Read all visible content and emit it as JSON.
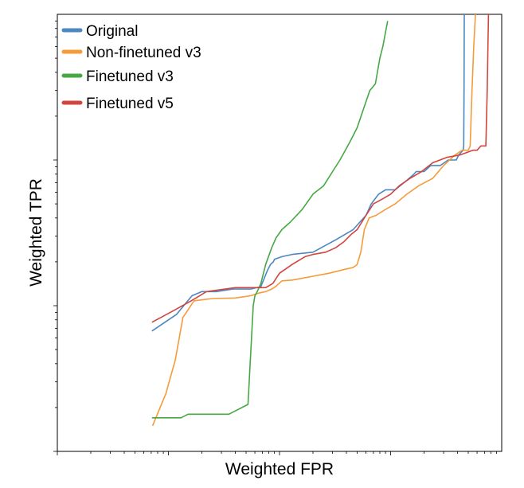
{
  "chart_data": {
    "type": "line",
    "title": "",
    "xlabel": "Weighted FPR",
    "ylabel": "Weighted TPR",
    "xscale": "log",
    "yscale": "log",
    "xlim": [
      0.0001,
      1
    ],
    "ylim": [
      0.001,
      1
    ],
    "grid": false,
    "legend": "top-left",
    "tick_labels_shown": false,
    "series": [
      {
        "name": "Original",
        "color": "#4b87c0",
        "x": [
          0.00071,
          0.00118,
          0.00163,
          0.002,
          0.0027,
          0.0038,
          0.0055,
          0.0068,
          0.0078,
          0.0083,
          0.0088,
          0.009,
          0.0105,
          0.013,
          0.02,
          0.032,
          0.046,
          0.06,
          0.067,
          0.078,
          0.09,
          0.11,
          0.135,
          0.16,
          0.17,
          0.2,
          0.23,
          0.28,
          0.33,
          0.36,
          0.39,
          0.41,
          0.45,
          0.455,
          0.458,
          0.46
        ],
        "y": [
          0.0067,
          0.0087,
          0.0117,
          0.0125,
          0.0125,
          0.013,
          0.013,
          0.0135,
          0.0175,
          0.0192,
          0.02,
          0.0208,
          0.0217,
          0.0225,
          0.0233,
          0.0283,
          0.0333,
          0.0417,
          0.05,
          0.0583,
          0.0625,
          0.0625,
          0.0708,
          0.0792,
          0.0833,
          0.0833,
          0.0917,
          0.0917,
          0.1,
          0.1,
          0.1,
          0.1083,
          0.1167,
          0.125,
          0.3,
          1.0
        ]
      },
      {
        "name": "Non-finetuned v3",
        "color": "#f59b3a",
        "x": [
          0.00072,
          0.00095,
          0.00105,
          0.00115,
          0.00135,
          0.0017,
          0.0025,
          0.004,
          0.0055,
          0.0065,
          0.0075,
          0.0085,
          0.0092,
          0.0105,
          0.013,
          0.019,
          0.028,
          0.039,
          0.046,
          0.05,
          0.054,
          0.058,
          0.064,
          0.074,
          0.09,
          0.11,
          0.14,
          0.18,
          0.24,
          0.3,
          0.38,
          0.44,
          0.47,
          0.5,
          0.52,
          0.54,
          0.56,
          0.58
        ],
        "y": [
          0.0015,
          0.0025,
          0.0033,
          0.0042,
          0.0083,
          0.0108,
          0.0112,
          0.0113,
          0.0117,
          0.0122,
          0.0125,
          0.013,
          0.0135,
          0.0148,
          0.015,
          0.0158,
          0.0167,
          0.0178,
          0.0183,
          0.0192,
          0.0235,
          0.0333,
          0.04,
          0.0417,
          0.0458,
          0.05,
          0.0583,
          0.0667,
          0.075,
          0.0917,
          0.1083,
          0.1167,
          0.1167,
          0.1167,
          0.125,
          0.3,
          0.6,
          1.0
        ]
      },
      {
        "name": "Finetuned v3",
        "color": "#46a844",
        "x": [
          0.00071,
          0.0013,
          0.0015,
          0.0022,
          0.0035,
          0.0052,
          0.0058,
          0.006,
          0.0063,
          0.0068,
          0.0075,
          0.0085,
          0.0093,
          0.0105,
          0.0125,
          0.016,
          0.02,
          0.025,
          0.03,
          0.035,
          0.043,
          0.05,
          0.058,
          0.065,
          0.073,
          0.076,
          0.08,
          0.085,
          0.094
        ],
        "y": [
          0.0017,
          0.0017,
          0.0018,
          0.0018,
          0.0018,
          0.0021,
          0.01,
          0.0117,
          0.0125,
          0.0142,
          0.0192,
          0.025,
          0.0292,
          0.0333,
          0.0375,
          0.0458,
          0.0583,
          0.0667,
          0.0833,
          0.1,
          0.1333,
          0.1667,
          0.2333,
          0.3,
          0.3333,
          0.4,
          0.5,
          0.6,
          0.9
        ]
      },
      {
        "name": "Finetuned v5",
        "color": "#d2453f",
        "x": [
          0.00071,
          0.0011,
          0.0016,
          0.0022,
          0.004,
          0.0075,
          0.0087,
          0.01,
          0.013,
          0.017,
          0.02,
          0.026,
          0.032,
          0.038,
          0.044,
          0.05,
          0.06,
          0.07,
          0.085,
          0.1,
          0.12,
          0.15,
          0.19,
          0.24,
          0.32,
          0.42,
          0.55,
          0.6,
          0.65,
          0.72,
          0.74,
          0.76
        ],
        "y": [
          0.0077,
          0.0092,
          0.0108,
          0.0125,
          0.0133,
          0.0133,
          0.0142,
          0.0167,
          0.0192,
          0.0217,
          0.0225,
          0.0233,
          0.025,
          0.0275,
          0.0308,
          0.0333,
          0.0417,
          0.05,
          0.0542,
          0.0583,
          0.0667,
          0.075,
          0.0833,
          0.0958,
          0.1042,
          0.1083,
          0.1167,
          0.1167,
          0.125,
          0.125,
          0.3,
          1.0
        ]
      }
    ]
  }
}
